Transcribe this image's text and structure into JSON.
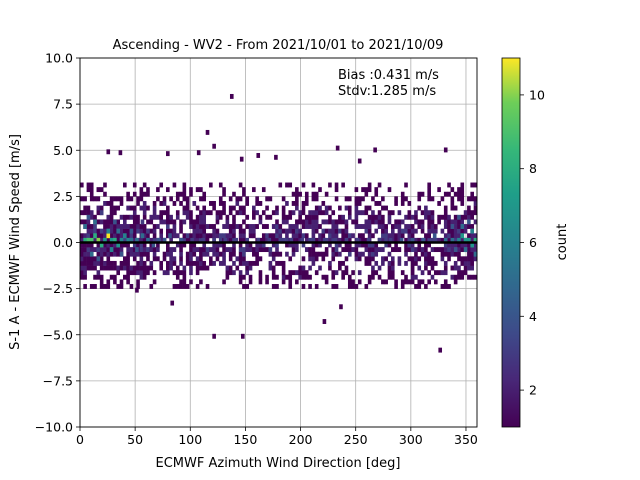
{
  "chart_data": {
    "type": "heatmap",
    "title": "Ascending - WV2 - From 2021/10/01 to 2021/10/09",
    "xlabel": "ECMWF Azimuth Wind Direction [deg]",
    "ylabel": "S-1 A - ECMWF Wind Speed [m/s]",
    "xlim": [
      0,
      360
    ],
    "ylim": [
      -10,
      10
    ],
    "x_ticks": [
      0,
      50,
      100,
      150,
      200,
      250,
      300,
      350
    ],
    "x_tick_labels": [
      "0",
      "50",
      "100",
      "150",
      "200",
      "250",
      "300",
      "350"
    ],
    "y_ticks": [
      -10,
      -7.5,
      -5,
      -2.5,
      0,
      2.5,
      5,
      7.5,
      10
    ],
    "y_tick_labels": [
      "−10.0",
      "−7.5",
      "−5.0",
      "−2.5",
      "0.0",
      "2.5",
      "5.0",
      "7.5",
      "10.0"
    ],
    "grid": true,
    "colormap": "viridis",
    "colorbar": {
      "label": "count",
      "range": [
        1,
        11
      ],
      "ticks": [
        2,
        4,
        6,
        8,
        10
      ],
      "tick_labels": [
        "2",
        "4",
        "6",
        "8",
        "10"
      ]
    },
    "annotation": {
      "bias_text": "Bias :0.431 m/s",
      "stdv_text": "Stdv:1.285 m/s"
    },
    "reference_line": {
      "y": 0,
      "color": "#000000"
    },
    "bin_size": {
      "x_deg": 3,
      "y_ms": 0.25
    },
    "cells": [
      [
        3,
        0,
        8
      ],
      [
        6,
        0,
        9
      ],
      [
        9,
        0,
        9
      ],
      [
        12,
        0.25,
        8
      ],
      [
        15,
        0,
        10
      ],
      [
        18,
        -0.25,
        8
      ],
      [
        21,
        0,
        7
      ],
      [
        24,
        0.25,
        11
      ],
      [
        27,
        0,
        7
      ],
      [
        30,
        0,
        8
      ],
      [
        33,
        -0.25,
        7
      ],
      [
        36,
        0,
        6
      ],
      [
        39,
        0.25,
        6
      ],
      [
        42,
        0,
        6
      ],
      [
        45,
        0,
        5
      ],
      [
        50,
        0,
        5
      ],
      [
        55,
        0.25,
        5
      ],
      [
        60,
        0,
        5
      ],
      [
        65,
        -0.25,
        4
      ],
      [
        70,
        0,
        4
      ],
      [
        75,
        0,
        4
      ],
      [
        80,
        0.25,
        4
      ],
      [
        90,
        0,
        4
      ],
      [
        100,
        0,
        3
      ],
      [
        110,
        0,
        3
      ],
      [
        120,
        0,
        3
      ],
      [
        130,
        0,
        3
      ],
      [
        140,
        0,
        3
      ],
      [
        150,
        0,
        3
      ],
      [
        160,
        0,
        3
      ],
      [
        170,
        0,
        3
      ],
      [
        180,
        0,
        3
      ],
      [
        190,
        0,
        3
      ],
      [
        200,
        0,
        3
      ],
      [
        210,
        0,
        3
      ],
      [
        220,
        0,
        3
      ],
      [
        230,
        0,
        3
      ],
      [
        240,
        0,
        3
      ],
      [
        250,
        0,
        3
      ],
      [
        260,
        0,
        3
      ],
      [
        270,
        0,
        3
      ],
      [
        280,
        0,
        3
      ],
      [
        290,
        0,
        4
      ],
      [
        300,
        0,
        4
      ],
      [
        310,
        0,
        4
      ],
      [
        320,
        0.25,
        4
      ],
      [
        330,
        0,
        5
      ],
      [
        336,
        0,
        5
      ],
      [
        342,
        0,
        6
      ],
      [
        345,
        0.25,
        7
      ],
      [
        348,
        0,
        7
      ],
      [
        351,
        0,
        7
      ],
      [
        354,
        -0.25,
        7
      ],
      [
        357,
        0,
        8
      ],
      [
        3,
        0.75,
        5
      ],
      [
        6,
        1.25,
        4
      ],
      [
        9,
        -0.75,
        5
      ],
      [
        12,
        1.0,
        5
      ],
      [
        15,
        -1.0,
        4
      ],
      [
        18,
        1.5,
        3
      ],
      [
        24,
        0.5,
        6
      ],
      [
        27,
        -0.5,
        6
      ],
      [
        30,
        1.0,
        4
      ],
      [
        33,
        0.5,
        5
      ],
      [
        36,
        -0.75,
        4
      ],
      [
        45,
        0.5,
        4
      ],
      [
        50,
        -0.5,
        4
      ],
      [
        55,
        1.0,
        3
      ],
      [
        60,
        0.5,
        3
      ],
      [
        345,
        0.75,
        5
      ],
      [
        348,
        -0.5,
        5
      ],
      [
        351,
        1.0,
        4
      ],
      [
        354,
        0.5,
        6
      ],
      [
        357,
        -0.75,
        5
      ],
      [
        342,
        1.25,
        4
      ],
      [
        339,
        -0.5,
        4
      ],
      [
        336,
        0.75,
        4
      ]
    ],
    "outliers": [
      [
        136,
        7.8
      ],
      [
        114,
        5.85
      ],
      [
        120,
        5.1
      ],
      [
        24,
        4.8
      ],
      [
        35,
        4.75
      ],
      [
        78,
        4.7
      ],
      [
        106,
        4.75
      ],
      [
        145,
        4.4
      ],
      [
        160,
        4.6
      ],
      [
        176,
        4.5
      ],
      [
        232,
        5.0
      ],
      [
        266,
        4.9
      ],
      [
        330,
        4.9
      ],
      [
        252,
        4.3
      ],
      [
        120,
        -5.2
      ],
      [
        146,
        -5.2
      ],
      [
        220,
        -4.4
      ],
      [
        235,
        -3.6
      ],
      [
        325,
        -5.95
      ],
      [
        82,
        -3.4
      ],
      [
        50,
        -2.7
      ]
    ]
  }
}
